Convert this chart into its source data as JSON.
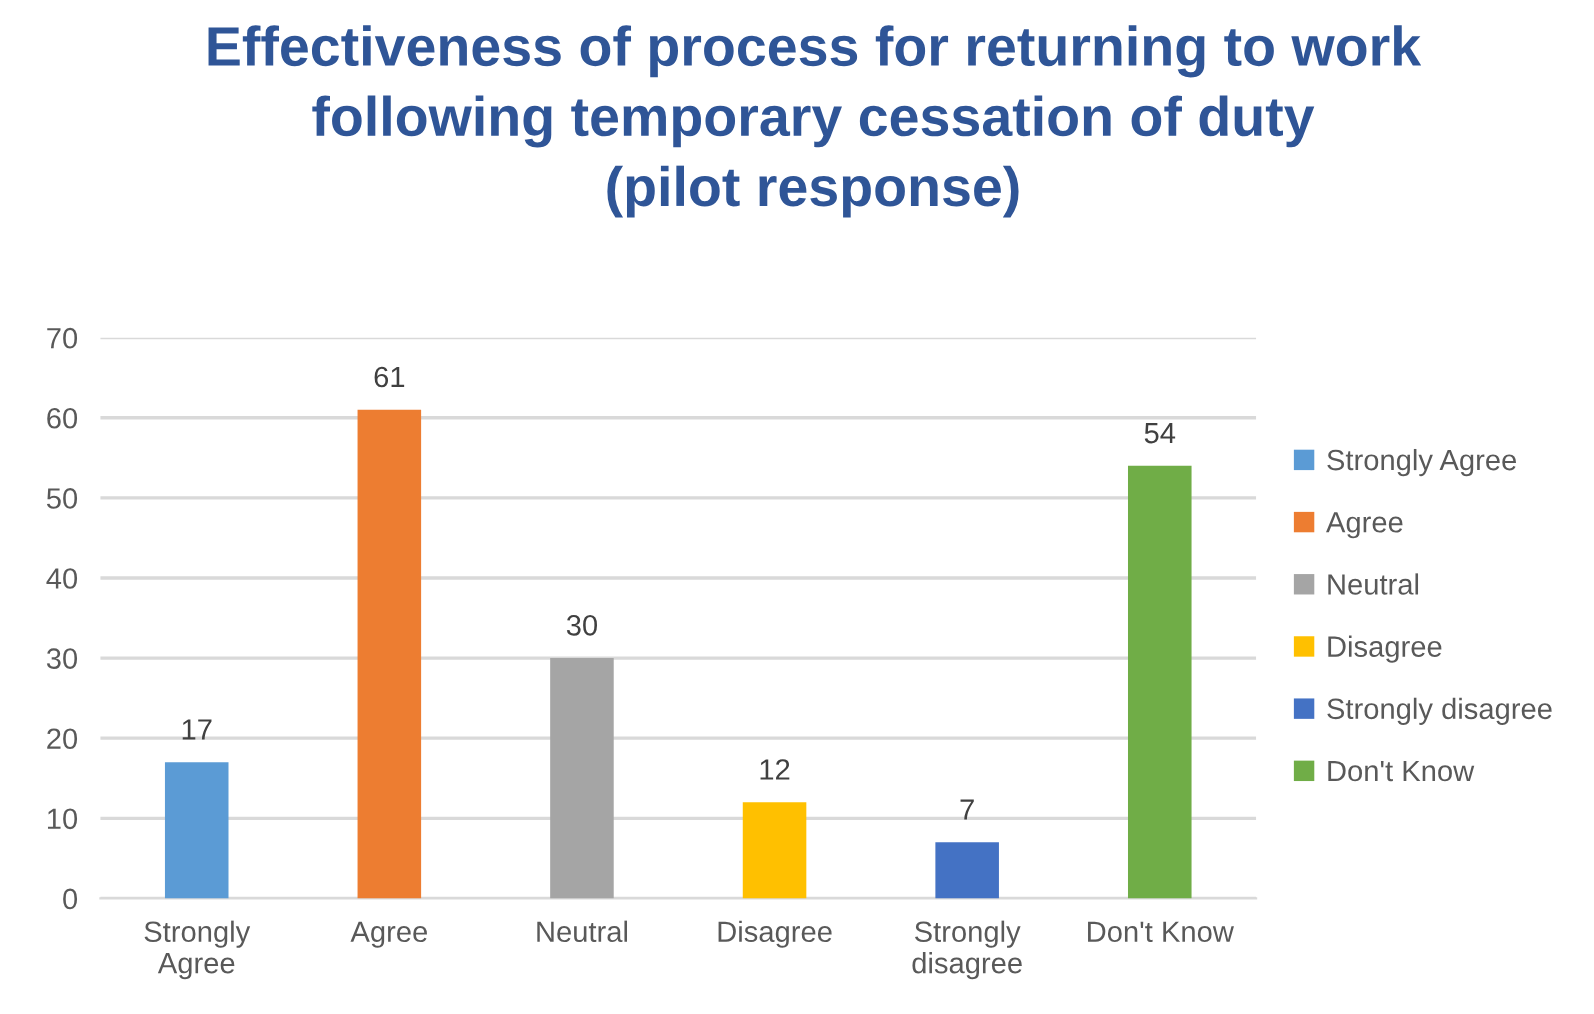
{
  "chart_data": {
    "type": "bar",
    "title": "Effectiveness of process for returning to work\nfollowing temporary cessation of duty\n(pilot response)",
    "categories": [
      "Strongly\nAgree",
      "Agree",
      "Neutral",
      "Disagree",
      "Strongly\ndisagree",
      "Don't Know"
    ],
    "series": [
      {
        "name": "Strongly Agree",
        "color": "#5b9bd5",
        "values": [
          17,
          null,
          null,
          null,
          null,
          null
        ]
      },
      {
        "name": "Agree",
        "color": "#ed7d31",
        "values": [
          null,
          61,
          null,
          null,
          null,
          null
        ]
      },
      {
        "name": "Neutral",
        "color": "#a5a5a5",
        "values": [
          null,
          null,
          30,
          null,
          null,
          null
        ]
      },
      {
        "name": "Disagree",
        "color": "#ffc000",
        "values": [
          null,
          null,
          null,
          12,
          null,
          null
        ]
      },
      {
        "name": "Strongly disagree",
        "color": "#4472c4",
        "values": [
          null,
          null,
          null,
          null,
          7,
          null
        ]
      },
      {
        "name": "Don't Know",
        "color": "#70ad47",
        "values": [
          null,
          null,
          null,
          null,
          null,
          54
        ]
      }
    ],
    "ylim": [
      0,
      70
    ],
    "yticks": [
      0,
      10,
      20,
      30,
      40,
      50,
      60,
      70
    ],
    "grid": "y",
    "legend": "right",
    "data_labels": true
  }
}
